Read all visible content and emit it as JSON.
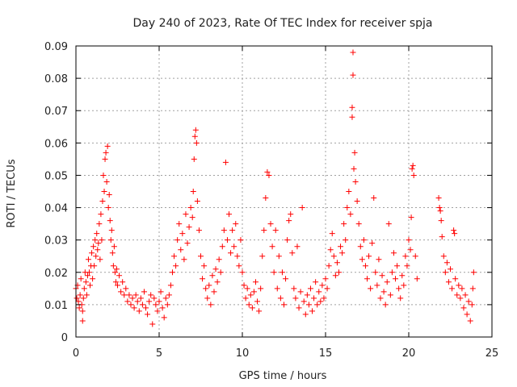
{
  "chart_data": {
    "type": "scatter",
    "title": "Day 240 of 2023, Rate Of TEC Index for receiver spja",
    "xlabel": "GPS time / hours",
    "ylabel": "ROTI / TECUs",
    "xlim": [
      0,
      25
    ],
    "ylim": [
      0,
      0.09
    ],
    "xticks": [
      0,
      5,
      10,
      15,
      20,
      25
    ],
    "xtick_labels": [
      "0",
      "5",
      "10",
      "15",
      "20",
      "25"
    ],
    "yticks": [
      0,
      0.01,
      0.02,
      0.03,
      0.04,
      0.05,
      0.06,
      0.07,
      0.08,
      0.09
    ],
    "ytick_labels": [
      "0",
      "0.01",
      "0.02",
      "0.03",
      "0.04",
      "0.05",
      "0.06",
      "0.07",
      "0.08",
      "0.09"
    ],
    "grid": true,
    "marker": "plus",
    "color": "#ff0000",
    "series": [
      {
        "points": [
          [
            0.0,
            0.015
          ],
          [
            0.05,
            0.012
          ],
          [
            0.1,
            0.016
          ],
          [
            0.15,
            0.011
          ],
          [
            0.2,
            0.009
          ],
          [
            0.25,
            0.013
          ],
          [
            0.3,
            0.018
          ],
          [
            0.35,
            0.01
          ],
          [
            0.4,
            0.008
          ],
          [
            0.4,
            0.005
          ],
          [
            0.45,
            0.012
          ],
          [
            0.5,
            0.015
          ],
          [
            0.55,
            0.02
          ],
          [
            0.6,
            0.017
          ],
          [
            0.65,
            0.013
          ],
          [
            0.7,
            0.019
          ],
          [
            0.75,
            0.024
          ],
          [
            0.8,
            0.02
          ],
          [
            0.85,
            0.016
          ],
          [
            0.9,
            0.022
          ],
          [
            0.95,
            0.026
          ],
          [
            1.0,
            0.018
          ],
          [
            1.05,
            0.028
          ],
          [
            1.1,
            0.022
          ],
          [
            1.15,
            0.03
          ],
          [
            1.2,
            0.025
          ],
          [
            1.25,
            0.032
          ],
          [
            1.3,
            0.027
          ],
          [
            1.35,
            0.029
          ],
          [
            1.4,
            0.035
          ],
          [
            1.45,
            0.024
          ],
          [
            1.5,
            0.038
          ],
          [
            1.55,
            0.03
          ],
          [
            1.6,
            0.042
          ],
          [
            1.65,
            0.05
          ],
          [
            1.7,
            0.045
          ],
          [
            1.75,
            0.055
          ],
          [
            1.8,
            0.057
          ],
          [
            1.85,
            0.048
          ],
          [
            1.9,
            0.059
          ],
          [
            1.95,
            0.04
          ],
          [
            2.0,
            0.044
          ],
          [
            2.05,
            0.036
          ],
          [
            2.1,
            0.03
          ],
          [
            2.15,
            0.033
          ],
          [
            2.2,
            0.026
          ],
          [
            2.25,
            0.022
          ],
          [
            2.3,
            0.028
          ],
          [
            2.35,
            0.02
          ],
          [
            2.4,
            0.017
          ],
          [
            2.45,
            0.021
          ],
          [
            2.5,
            0.016
          ],
          [
            2.6,
            0.019
          ],
          [
            2.7,
            0.014
          ],
          [
            2.8,
            0.017
          ],
          [
            2.9,
            0.013
          ],
          [
            3.0,
            0.015
          ],
          [
            3.1,
            0.011
          ],
          [
            3.2,
            0.013
          ],
          [
            3.3,
            0.01
          ],
          [
            3.4,
            0.012
          ],
          [
            3.5,
            0.009
          ],
          [
            3.6,
            0.013
          ],
          [
            3.7,
            0.011
          ],
          [
            3.8,
            0.008
          ],
          [
            3.9,
            0.012
          ],
          [
            4.0,
            0.01
          ],
          [
            4.1,
            0.014
          ],
          [
            4.2,
            0.009
          ],
          [
            4.3,
            0.007
          ],
          [
            4.4,
            0.011
          ],
          [
            4.5,
            0.013
          ],
          [
            4.6,
            0.004
          ],
          [
            4.7,
            0.012
          ],
          [
            4.8,
            0.01
          ],
          [
            4.9,
            0.008
          ],
          [
            5.0,
            0.011
          ],
          [
            5.1,
            0.014
          ],
          [
            5.2,
            0.009
          ],
          [
            5.3,
            0.006
          ],
          [
            5.4,
            0.012
          ],
          [
            5.5,
            0.01
          ],
          [
            5.6,
            0.013
          ],
          [
            5.7,
            0.016
          ],
          [
            5.8,
            0.02
          ],
          [
            5.9,
            0.025
          ],
          [
            6.0,
            0.022
          ],
          [
            6.1,
            0.03
          ],
          [
            6.2,
            0.035
          ],
          [
            6.3,
            0.027
          ],
          [
            6.4,
            0.032
          ],
          [
            6.5,
            0.024
          ],
          [
            6.6,
            0.038
          ],
          [
            6.7,
            0.029
          ],
          [
            6.8,
            0.034
          ],
          [
            6.9,
            0.04
          ],
          [
            7.0,
            0.037
          ],
          [
            7.05,
            0.045
          ],
          [
            7.1,
            0.055
          ],
          [
            7.15,
            0.062
          ],
          [
            7.2,
            0.064
          ],
          [
            7.25,
            0.06
          ],
          [
            7.3,
            0.042
          ],
          [
            7.4,
            0.033
          ],
          [
            7.5,
            0.025
          ],
          [
            7.6,
            0.018
          ],
          [
            7.7,
            0.022
          ],
          [
            7.8,
            0.015
          ],
          [
            7.9,
            0.012
          ],
          [
            8.0,
            0.016
          ],
          [
            8.1,
            0.01
          ],
          [
            8.2,
            0.019
          ],
          [
            8.3,
            0.014
          ],
          [
            8.4,
            0.021
          ],
          [
            8.5,
            0.017
          ],
          [
            8.6,
            0.024
          ],
          [
            8.7,
            0.02
          ],
          [
            8.8,
            0.028
          ],
          [
            8.9,
            0.033
          ],
          [
            9.0,
            0.054
          ],
          [
            9.1,
            0.03
          ],
          [
            9.2,
            0.038
          ],
          [
            9.3,
            0.026
          ],
          [
            9.4,
            0.033
          ],
          [
            9.5,
            0.028
          ],
          [
            9.6,
            0.035
          ],
          [
            9.7,
            0.025
          ],
          [
            9.8,
            0.022
          ],
          [
            9.9,
            0.03
          ],
          [
            10.0,
            0.02
          ],
          [
            10.1,
            0.016
          ],
          [
            10.2,
            0.012
          ],
          [
            10.3,
            0.015
          ],
          [
            10.4,
            0.01
          ],
          [
            10.5,
            0.013
          ],
          [
            10.6,
            0.009
          ],
          [
            10.7,
            0.014
          ],
          [
            10.8,
            0.017
          ],
          [
            10.9,
            0.011
          ],
          [
            11.0,
            0.008
          ],
          [
            11.1,
            0.015
          ],
          [
            11.2,
            0.025
          ],
          [
            11.3,
            0.033
          ],
          [
            11.4,
            0.043
          ],
          [
            11.5,
            0.051
          ],
          [
            11.6,
            0.05
          ],
          [
            11.7,
            0.035
          ],
          [
            11.8,
            0.028
          ],
          [
            11.9,
            0.02
          ],
          [
            12.0,
            0.033
          ],
          [
            12.1,
            0.015
          ],
          [
            12.2,
            0.025
          ],
          [
            12.3,
            0.012
          ],
          [
            12.4,
            0.02
          ],
          [
            12.5,
            0.01
          ],
          [
            12.6,
            0.018
          ],
          [
            12.7,
            0.03
          ],
          [
            12.8,
            0.036
          ],
          [
            12.9,
            0.038
          ],
          [
            13.0,
            0.026
          ],
          [
            13.1,
            0.015
          ],
          [
            13.2,
            0.012
          ],
          [
            13.3,
            0.028
          ],
          [
            13.4,
            0.009
          ],
          [
            13.5,
            0.014
          ],
          [
            13.6,
            0.04
          ],
          [
            13.7,
            0.011
          ],
          [
            13.8,
            0.007
          ],
          [
            13.9,
            0.013
          ],
          [
            14.0,
            0.01
          ],
          [
            14.1,
            0.015
          ],
          [
            14.2,
            0.008
          ],
          [
            14.3,
            0.012
          ],
          [
            14.4,
            0.017
          ],
          [
            14.5,
            0.01
          ],
          [
            14.6,
            0.014
          ],
          [
            14.7,
            0.011
          ],
          [
            14.8,
            0.016
          ],
          [
            14.9,
            0.012
          ],
          [
            15.0,
            0.018
          ],
          [
            15.1,
            0.015
          ],
          [
            15.2,
            0.022
          ],
          [
            15.3,
            0.027
          ],
          [
            15.4,
            0.032
          ],
          [
            15.5,
            0.025
          ],
          [
            15.6,
            0.019
          ],
          [
            15.7,
            0.023
          ],
          [
            15.8,
            0.02
          ],
          [
            15.9,
            0.028
          ],
          [
            16.0,
            0.026
          ],
          [
            16.1,
            0.035
          ],
          [
            16.2,
            0.03
          ],
          [
            16.3,
            0.04
          ],
          [
            16.4,
            0.045
          ],
          [
            16.5,
            0.038
          ],
          [
            16.6,
            0.068
          ],
          [
            16.6,
            0.071
          ],
          [
            16.65,
            0.088
          ],
          [
            16.65,
            0.081
          ],
          [
            16.7,
            0.052
          ],
          [
            16.75,
            0.057
          ],
          [
            16.8,
            0.048
          ],
          [
            16.9,
            0.042
          ],
          [
            17.0,
            0.035
          ],
          [
            17.1,
            0.028
          ],
          [
            17.2,
            0.024
          ],
          [
            17.3,
            0.03
          ],
          [
            17.4,
            0.022
          ],
          [
            17.5,
            0.018
          ],
          [
            17.6,
            0.025
          ],
          [
            17.7,
            0.015
          ],
          [
            17.8,
            0.029
          ],
          [
            17.9,
            0.043
          ],
          [
            18.0,
            0.02
          ],
          [
            18.1,
            0.016
          ],
          [
            18.2,
            0.024
          ],
          [
            18.3,
            0.012
          ],
          [
            18.4,
            0.019
          ],
          [
            18.5,
            0.014
          ],
          [
            18.6,
            0.01
          ],
          [
            18.7,
            0.017
          ],
          [
            18.8,
            0.035
          ],
          [
            18.9,
            0.013
          ],
          [
            19.0,
            0.02
          ],
          [
            19.1,
            0.026
          ],
          [
            19.2,
            0.018
          ],
          [
            19.3,
            0.022
          ],
          [
            19.4,
            0.015
          ],
          [
            19.5,
            0.012
          ],
          [
            19.6,
            0.019
          ],
          [
            19.7,
            0.016
          ],
          [
            19.8,
            0.025
          ],
          [
            19.9,
            0.022
          ],
          [
            20.0,
            0.03
          ],
          [
            20.1,
            0.027
          ],
          [
            20.15,
            0.037
          ],
          [
            20.2,
            0.052
          ],
          [
            20.25,
            0.053
          ],
          [
            20.3,
            0.05
          ],
          [
            20.4,
            0.025
          ],
          [
            20.5,
            0.018
          ],
          [
            21.8,
            0.043
          ],
          [
            21.85,
            0.04
          ],
          [
            21.9,
            0.039
          ],
          [
            21.95,
            0.036
          ],
          [
            22.0,
            0.031
          ],
          [
            22.1,
            0.025
          ],
          [
            22.2,
            0.02
          ],
          [
            22.3,
            0.023
          ],
          [
            22.4,
            0.017
          ],
          [
            22.5,
            0.021
          ],
          [
            22.6,
            0.015
          ],
          [
            22.7,
            0.033
          ],
          [
            22.75,
            0.032
          ],
          [
            22.8,
            0.018
          ],
          [
            22.9,
            0.013
          ],
          [
            23.0,
            0.016
          ],
          [
            23.1,
            0.012
          ],
          [
            23.2,
            0.015
          ],
          [
            23.3,
            0.009
          ],
          [
            23.4,
            0.013
          ],
          [
            23.5,
            0.007
          ],
          [
            23.6,
            0.011
          ],
          [
            23.7,
            0.005
          ],
          [
            23.8,
            0.01
          ],
          [
            23.85,
            0.015
          ],
          [
            23.9,
            0.02
          ]
        ]
      }
    ]
  }
}
